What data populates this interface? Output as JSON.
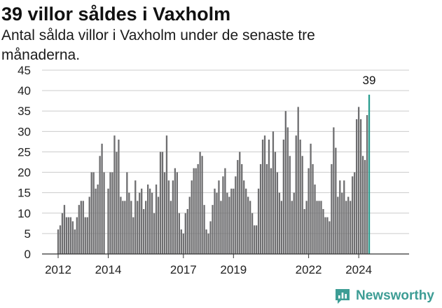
{
  "title": "39 villor såldes i Vaxholm",
  "subtitle": "Antal sålda villor i Vaxholm under de senaste tre månaderna.",
  "brand": "Newsworthy",
  "colors": {
    "bar": "#6e6e70",
    "highlight": "#2a9d8f",
    "grid": "#cccccc",
    "axis": "#333333",
    "brand": "#3d9d95"
  },
  "chart_data": {
    "type": "bar",
    "start": "2012-01",
    "frequency": "monthly",
    "ylim": [
      0,
      45
    ],
    "yticks": [
      0,
      5,
      10,
      15,
      20,
      25,
      30,
      35,
      40,
      45
    ],
    "xticks": [
      {
        "label": "2012",
        "index": 0
      },
      {
        "label": "2014",
        "index": 24
      },
      {
        "label": "2017",
        "index": 60
      },
      {
        "label": "2019",
        "index": 84
      },
      {
        "label": "2022",
        "index": 120
      },
      {
        "label": "2024",
        "index": 144
      }
    ],
    "highlight_label": "39",
    "values": [
      6,
      7,
      10,
      12,
      9,
      9,
      9,
      8,
      6,
      9,
      12,
      13,
      13,
      9,
      9,
      14,
      20,
      20,
      16,
      17,
      24,
      27,
      20,
      0,
      16,
      20,
      20,
      29,
      25,
      28,
      14,
      13,
      13,
      20,
      15,
      13,
      9,
      18,
      13,
      15,
      16,
      11,
      13,
      17,
      16,
      15,
      10,
      17,
      14,
      25,
      25,
      20,
      29,
      18,
      13,
      18,
      21,
      20,
      10,
      6,
      5,
      10,
      11,
      14,
      18,
      21,
      21,
      22,
      25,
      24,
      12,
      6,
      5,
      8,
      12,
      16,
      15,
      18,
      13,
      19,
      21,
      15,
      14,
      16,
      16,
      19,
      23,
      25,
      22,
      18,
      16,
      14,
      13,
      10,
      7,
      7,
      16,
      22,
      28,
      29,
      22,
      28,
      21,
      30,
      25,
      20,
      15,
      13,
      28,
      35,
      31,
      24,
      13,
      15,
      29,
      36,
      28,
      24,
      11,
      13,
      21,
      27,
      22,
      17,
      13,
      13,
      13,
      11,
      9,
      9,
      8,
      22,
      31,
      26,
      14,
      18,
      15,
      18,
      13,
      14,
      13,
      19,
      20,
      33,
      36,
      33,
      24,
      23,
      34,
      39
    ]
  }
}
